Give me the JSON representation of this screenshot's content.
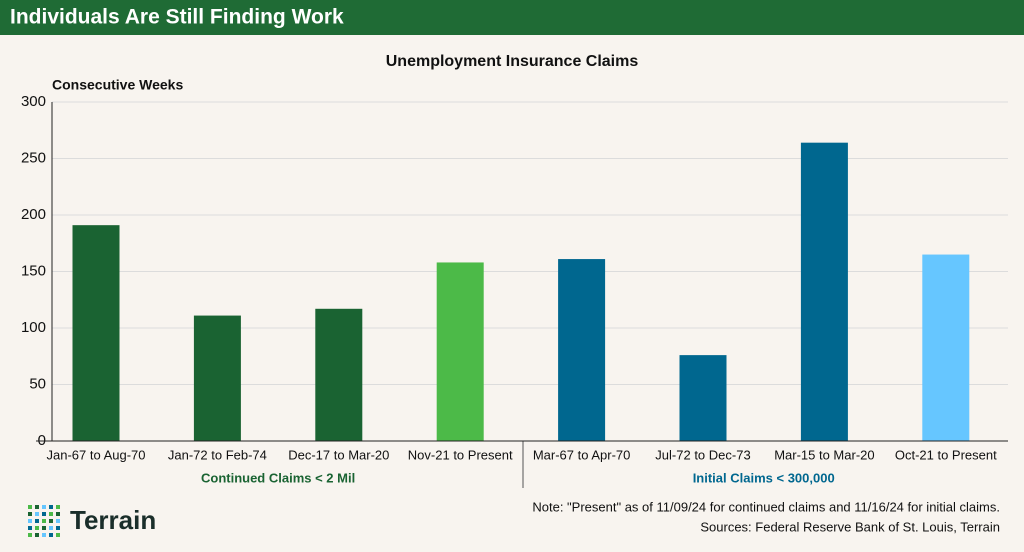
{
  "header": {
    "title": "Individuals Are Still Finding Work"
  },
  "chart_data": {
    "type": "bar",
    "title": "Unemployment Insurance Claims",
    "y_label": "Consecutive Weeks",
    "categories": [
      "Jan-67 to Aug-70",
      "Jan-72 to Feb-74",
      "Dec-17 to Mar-20",
      "Nov-21 to Present",
      "Mar-67 to Apr-70",
      "Jul-72 to Dec-73",
      "Mar-15 to Mar-20",
      "Oct-21 to Present"
    ],
    "values": [
      191,
      111,
      117,
      158,
      161,
      76,
      264,
      165
    ],
    "colors": [
      "#1a6332",
      "#1a6332",
      "#1a6332",
      "#4cba48",
      "#00678f",
      "#00678f",
      "#00678f",
      "#66c6ff"
    ],
    "ylim": [
      0,
      300
    ],
    "yticks": [
      0,
      50,
      100,
      150,
      200,
      250,
      300
    ],
    "grid": true,
    "groups": [
      {
        "name": "Continued Claims < 2 Mil",
        "color": "#1a6332"
      },
      {
        "name": "Initial Claims < 300,000",
        "color": "#00678f"
      }
    ]
  },
  "footer": {
    "logo": "Terrain",
    "note": "Note: \"Present\" as of 11/09/24 for continued claims and 11/16/24 for initial claims.",
    "source": "Sources: Federal Reserve Bank of St. Louis, Terrain"
  }
}
